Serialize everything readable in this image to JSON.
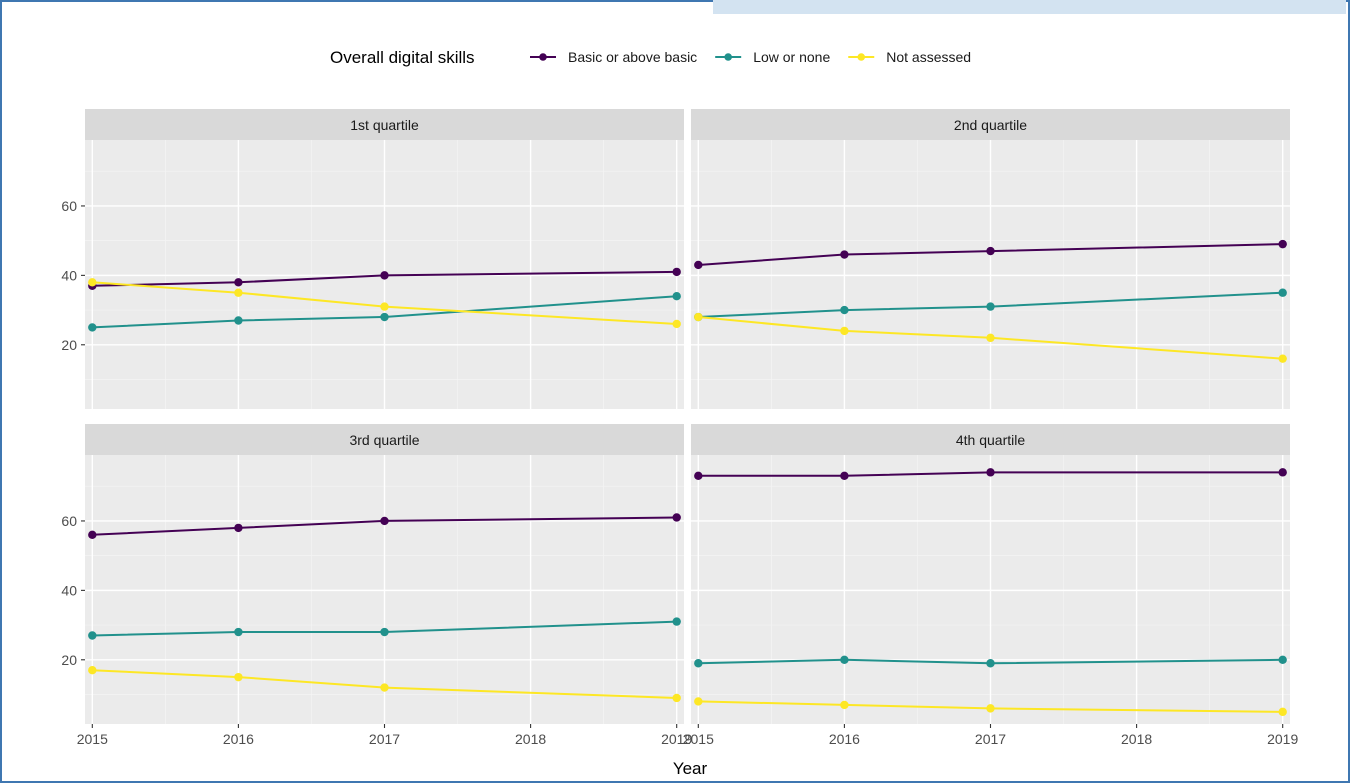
{
  "chart_data": {
    "type": "line",
    "legend": {
      "title": "Overall digital skills",
      "placement": "top"
    },
    "xlabel": "Year",
    "ylabel": "",
    "x": [
      2015,
      2016,
      2017,
      2018,
      2019
    ],
    "x_ticks": [
      "2015",
      "2016",
      "2017",
      "2018",
      "2019"
    ],
    "y_ticks": [
      "20",
      "40",
      "60"
    ],
    "ylim": [
      1.5,
      79
    ],
    "xlim": [
      2014.95,
      2019.05
    ],
    "grid": true,
    "series_styles": [
      {
        "name": "Basic or above basic",
        "color": "#440154"
      },
      {
        "name": "Low or none",
        "color": "#21918c"
      },
      {
        "name": "Not assessed",
        "color": "#fde725"
      }
    ],
    "panels": [
      {
        "title": "1st quartile",
        "series": [
          {
            "name": "Basic or above basic",
            "x": [
              2015,
              2016,
              2017,
              2019
            ],
            "values": [
              37,
              38,
              40,
              41
            ]
          },
          {
            "name": "Low or none",
            "x": [
              2015,
              2016,
              2017,
              2019
            ],
            "values": [
              25,
              27,
              28,
              34
            ]
          },
          {
            "name": "Not assessed",
            "x": [
              2015,
              2016,
              2017,
              2019
            ],
            "values": [
              38,
              35,
              31,
              26
            ]
          }
        ]
      },
      {
        "title": "2nd quartile",
        "series": [
          {
            "name": "Basic or above basic",
            "x": [
              2015,
              2016,
              2017,
              2019
            ],
            "values": [
              43,
              46,
              47,
              49
            ]
          },
          {
            "name": "Low or none",
            "x": [
              2015,
              2016,
              2017,
              2019
            ],
            "values": [
              28,
              30,
              31,
              35
            ]
          },
          {
            "name": "Not assessed",
            "x": [
              2015,
              2016,
              2017,
              2019
            ],
            "values": [
              28,
              24,
              22,
              16
            ]
          }
        ]
      },
      {
        "title": "3rd quartile",
        "series": [
          {
            "name": "Basic or above basic",
            "x": [
              2015,
              2016,
              2017,
              2019
            ],
            "values": [
              56,
              58,
              60,
              61
            ]
          },
          {
            "name": "Low or none",
            "x": [
              2015,
              2016,
              2017,
              2019
            ],
            "values": [
              27,
              28,
              28,
              31
            ]
          },
          {
            "name": "Not assessed",
            "x": [
              2015,
              2016,
              2017,
              2019
            ],
            "values": [
              17,
              15,
              12,
              9
            ]
          }
        ]
      },
      {
        "title": "4th quartile",
        "series": [
          {
            "name": "Basic or above basic",
            "x": [
              2015,
              2016,
              2017,
              2019
            ],
            "values": [
              73,
              73,
              74,
              74
            ]
          },
          {
            "name": "Low or none",
            "x": [
              2015,
              2016,
              2017,
              2019
            ],
            "values": [
              19,
              20,
              19,
              20
            ]
          },
          {
            "name": "Not assessed",
            "x": [
              2015,
              2016,
              2017,
              2019
            ],
            "values": [
              8,
              7,
              6,
              5
            ]
          }
        ]
      }
    ]
  }
}
